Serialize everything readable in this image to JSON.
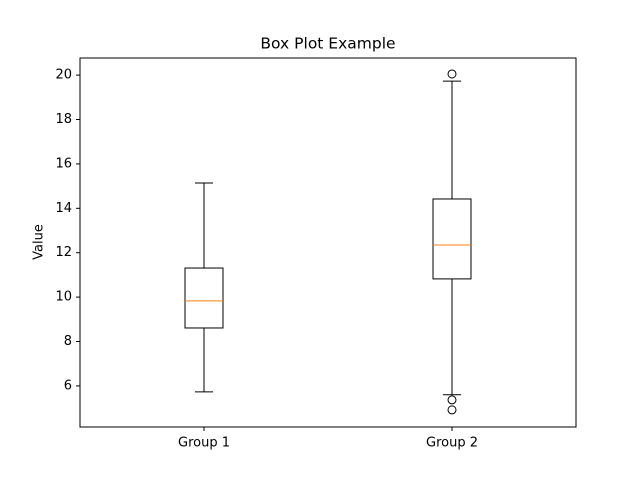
{
  "chart_data": {
    "type": "box",
    "title": "Box Plot Example",
    "ylabel": "Value",
    "categories": [
      "Group 1",
      "Group 2"
    ],
    "boxes": [
      {
        "whislo": 5.73,
        "q1": 8.61,
        "med": 9.83,
        "q3": 11.31,
        "whishi": 15.14,
        "fliers": []
      },
      {
        "whislo": 5.6,
        "q1": 10.82,
        "med": 12.35,
        "q3": 14.42,
        "whishi": 19.73,
        "fliers": [
          20.05,
          5.37,
          4.92
        ]
      }
    ],
    "color": "#000000",
    "median_color": "#ff7f0e",
    "xlim": [
      0.5,
      2.5
    ],
    "ylim": [
      4.15,
      20.77
    ],
    "yticks": [
      6,
      8,
      10,
      12,
      14,
      16,
      18,
      20
    ],
    "grid": false
  }
}
